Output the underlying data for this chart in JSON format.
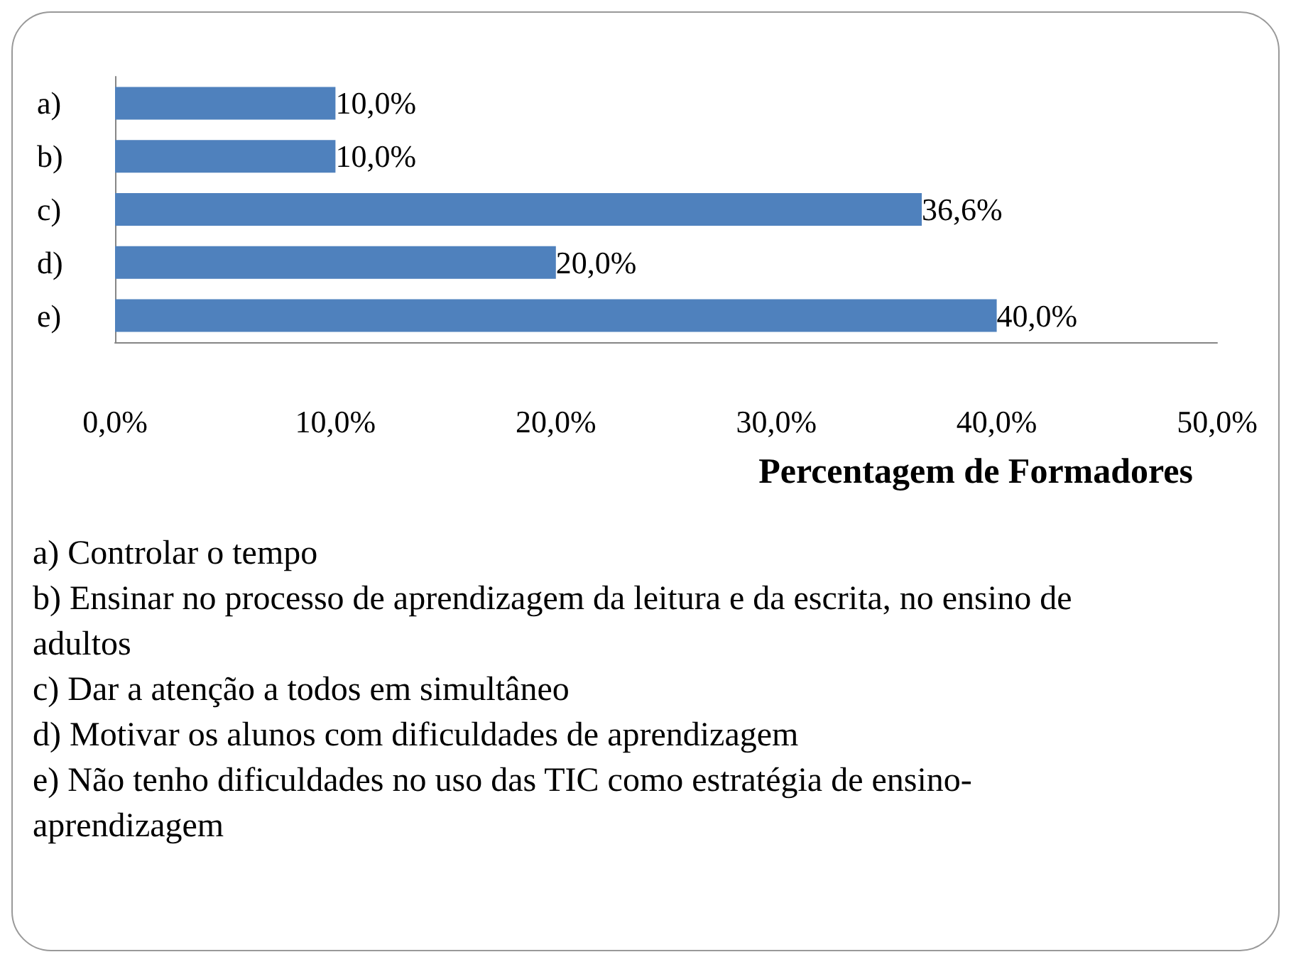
{
  "chart_data": {
    "type": "bar",
    "orientation": "horizontal",
    "xlabel": "Percentagem de Formadores",
    "categories": [
      "a)",
      "b)",
      "c)",
      "d)",
      "e)"
    ],
    "values": [
      10,
      10,
      36.6,
      20,
      40
    ],
    "value_labels": [
      "10,0%",
      "10,0%",
      "36,6%",
      "20,0%",
      "40,0%"
    ],
    "color": "#4f81bd",
    "xlim": [
      0,
      50
    ],
    "xticks": [
      {
        "value": 0,
        "label": "0,0%"
      },
      {
        "value": 10,
        "label": "10,0%"
      },
      {
        "value": 20,
        "label": "20,0%"
      },
      {
        "value": 30,
        "label": "30,0%"
      },
      {
        "value": 40,
        "label": "40,0%"
      },
      {
        "value": 50,
        "label": "50,0%"
      }
    ],
    "grid": false,
    "annotations": [
      "a) Controlar o tempo",
      "b) Ensinar no processo de aprendizagem da leitura e da escrita, no ensino de adultos",
      "c) Dar a atenção a todos em simultâneo",
      "d) Motivar os alunos com dificuldades de aprendizagem",
      "e) Não tenho dificuldades no uso das TIC como estratégia de ensino-aprendizagem"
    ]
  }
}
